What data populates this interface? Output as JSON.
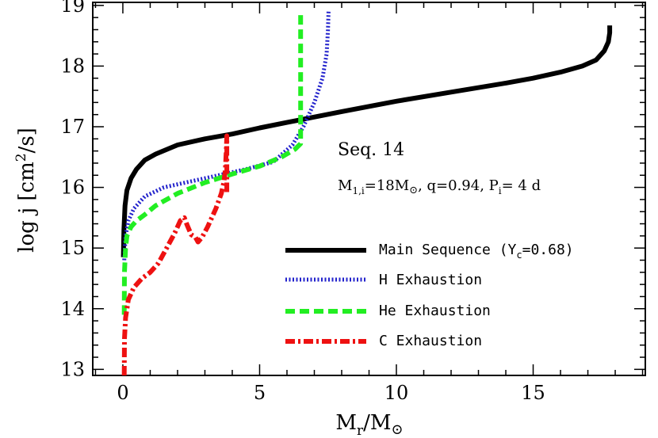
{
  "chart_data": {
    "type": "line",
    "xlabel": "M_r/M_⊙",
    "ylabel": "log j [cm²/s]",
    "xlim": [
      -1.1,
      19.1
    ],
    "ylim": [
      12.9,
      19.05
    ],
    "xticks": [
      "0",
      "5",
      "10",
      "15"
    ],
    "yticks": [
      "13",
      "14",
      "15",
      "16",
      "17",
      "18",
      "19"
    ],
    "annotations": {
      "seq": "Seq. 14",
      "params": "M₁,ᵢ=18M⊙, q=0.94, Pᵢ= 4 d"
    },
    "legend_position": "bottom-right",
    "series": [
      {
        "name": "Main Sequence (Y_c=0.68)",
        "color": "#000000",
        "style": "solid",
        "x": [
          0.02,
          0.04,
          0.08,
          0.15,
          0.3,
          0.5,
          0.8,
          1.2,
          2,
          3,
          4,
          5,
          6,
          8,
          10,
          12,
          14,
          15,
          16,
          16.8,
          17.3,
          17.6,
          17.75,
          17.8,
          17.8
        ],
        "y": [
          14.85,
          15.3,
          15.7,
          15.95,
          16.15,
          16.3,
          16.45,
          16.55,
          16.7,
          16.8,
          16.88,
          16.98,
          17.07,
          17.25,
          17.42,
          17.57,
          17.72,
          17.8,
          17.9,
          18.0,
          18.1,
          18.25,
          18.4,
          18.55,
          18.67
        ]
      },
      {
        "name": "H Exhaustion",
        "color": "#2222cc",
        "style": "dotted",
        "x": [
          0.05,
          0.1,
          0.2,
          0.4,
          0.8,
          1.5,
          2.5,
          3.5,
          4.5,
          5.5,
          6.2,
          6.6,
          7.0,
          7.3,
          7.45,
          7.5,
          7.52
        ],
        "y": [
          14.8,
          15.2,
          15.45,
          15.65,
          15.85,
          16.0,
          16.1,
          16.2,
          16.3,
          16.42,
          16.7,
          17.0,
          17.4,
          17.8,
          18.2,
          18.6,
          18.9
        ]
      },
      {
        "name": "He Exhaustion",
        "color": "#22ee22",
        "style": "dashed",
        "x": [
          0.05,
          0.06,
          0.1,
          0.15,
          0.3,
          0.5,
          0.8,
          1.2,
          2,
          3,
          4,
          5,
          5.8,
          6.3,
          6.5,
          6.5,
          6.5,
          6.5
        ],
        "y": [
          13.9,
          14.6,
          15.0,
          15.2,
          15.35,
          15.45,
          15.55,
          15.7,
          15.9,
          16.08,
          16.22,
          16.35,
          16.5,
          16.63,
          16.72,
          17.0,
          18.0,
          18.9
        ]
      },
      {
        "name": "C Exhaustion",
        "color": "#ee1111",
        "style": "dashdot",
        "x": [
          0.05,
          0.06,
          0.1,
          0.2,
          0.4,
          0.7,
          1.0,
          1.3,
          1.6,
          1.9,
          2.1,
          2.25,
          2.35,
          2.5,
          2.65,
          2.75,
          2.9,
          3.1,
          3.4,
          3.6,
          3.7,
          3.75,
          3.78,
          3.8,
          3.8,
          3.8
        ],
        "y": [
          12.9,
          13.5,
          13.85,
          14.15,
          14.35,
          14.5,
          14.6,
          14.75,
          15.0,
          15.25,
          15.45,
          15.5,
          15.38,
          15.22,
          15.18,
          15.1,
          15.18,
          15.35,
          15.65,
          15.9,
          16.1,
          16.3,
          16.6,
          16.85,
          16.5,
          15.9
        ]
      }
    ]
  },
  "legend_labels": {
    "ms": "Main Sequence (Y",
    "ms_sub": "c",
    "ms_tail": "=0.68)",
    "h": "H Exhaustion",
    "he": "He Exhaustion",
    "c": "C Exhaustion"
  },
  "label_parts": {
    "ylabel_main": "log j [cm",
    "ylabel_sup": "2",
    "ylabel_tail": "/s]",
    "xlabel_m": "M",
    "xlabel_sub_r": "r",
    "xlabel_mid": "/M",
    "xlabel_sun": "⊙",
    "params_a": "M",
    "params_sub1": "1,i",
    "params_b": "=18M",
    "params_sun": "⊙",
    "params_c": ", q=0.94, P",
    "params_sub2": "i",
    "params_d": "= 4 d"
  }
}
